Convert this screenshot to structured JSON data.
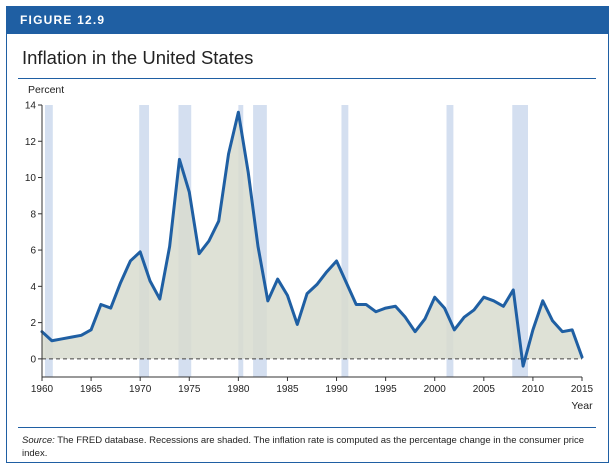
{
  "figure": {
    "label": "FIGURE 12.9",
    "title": "Inflation in the United States",
    "source_label": "Source:",
    "source_text": " The FRED database. Recessions are shaded. The inflation rate is computed as the percentage change in the consumer price index."
  },
  "colors": {
    "header": "#1f5fa3",
    "line": "#1f5fa3",
    "area": "#d8dccf",
    "recession": "#d4dff0",
    "axis": "#333333",
    "zero_line": "#444444"
  },
  "chart_data": {
    "type": "area",
    "title": "Inflation in the United States",
    "ylabel": "Percent",
    "xlabel": "Year",
    "xlim": [
      1960,
      2015
    ],
    "ylim": [
      -1,
      14
    ],
    "x_ticks": [
      1960,
      1965,
      1970,
      1975,
      1980,
      1985,
      1990,
      1995,
      2000,
      2005,
      2010,
      2015
    ],
    "y_ticks": [
      0,
      2,
      4,
      6,
      8,
      10,
      12,
      14
    ],
    "zero_line": "dashed",
    "recessions": [
      [
        1960.3,
        1961.1
      ],
      [
        1969.9,
        1970.9
      ],
      [
        1973.9,
        1975.2
      ],
      [
        1980.0,
        1980.5
      ],
      [
        1981.5,
        1982.9
      ],
      [
        1990.5,
        1991.2
      ],
      [
        2001.2,
        2001.9
      ],
      [
        2007.9,
        2009.5
      ]
    ],
    "series": [
      {
        "x": [
          1960,
          1961,
          1962,
          1963,
          1964,
          1965,
          1966,
          1967,
          1968,
          1969,
          1970,
          1971,
          1972,
          1973,
          1974,
          1975,
          1976,
          1977,
          1978,
          1979,
          1980,
          1981,
          1982,
          1983,
          1984,
          1985,
          1986,
          1987,
          1988,
          1989,
          1990,
          1991,
          1992,
          1993,
          1994,
          1995,
          1996,
          1997,
          1998,
          1999,
          2000,
          2001,
          2002,
          2003,
          2004,
          2005,
          2006,
          2007,
          2008,
          2009,
          2010,
          2011,
          2012,
          2013,
          2014,
          2015
        ],
        "values": [
          1.5,
          1.0,
          1.1,
          1.2,
          1.3,
          1.6,
          3.0,
          2.8,
          4.2,
          5.4,
          5.9,
          4.3,
          3.3,
          6.2,
          11.0,
          9.2,
          5.8,
          6.5,
          7.6,
          11.3,
          13.6,
          10.3,
          6.2,
          3.2,
          4.4,
          3.5,
          1.9,
          3.6,
          4.1,
          4.8,
          5.4,
          4.2,
          3.0,
          3.0,
          2.6,
          2.8,
          2.9,
          2.3,
          1.5,
          2.2,
          3.4,
          2.8,
          1.6,
          2.3,
          2.7,
          3.4,
          3.2,
          2.9,
          3.8,
          -0.4,
          1.6,
          3.2,
          2.1,
          1.5,
          1.6,
          0.1
        ]
      }
    ]
  }
}
